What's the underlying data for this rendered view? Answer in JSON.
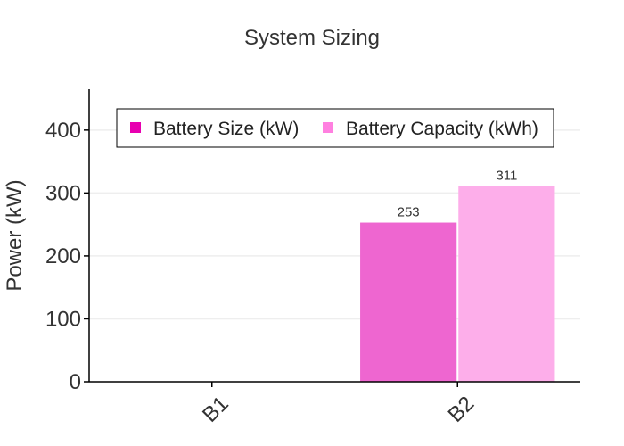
{
  "chart_data": {
    "type": "bar",
    "title": "System Sizing",
    "xlabel": "",
    "ylabel": "Power (kW)",
    "categories": [
      "B1",
      "B2"
    ],
    "ylim": [
      0,
      465
    ],
    "yticks": [
      0,
      100,
      200,
      300,
      400
    ],
    "grid": true,
    "legend": "top-left, inside plot, horizontal",
    "series": [
      {
        "name": "Battery Size (kW)",
        "values": [
          0,
          253
        ],
        "color": "#ee66d0",
        "legend_color": "#e800b0",
        "show_labels": [
          false,
          true
        ]
      },
      {
        "name": "Battery Capacity (kWh)",
        "values": [
          0,
          311
        ],
        "color": "#fdaeea",
        "legend_color": "#ff80e0",
        "show_labels": [
          false,
          true
        ]
      }
    ]
  }
}
